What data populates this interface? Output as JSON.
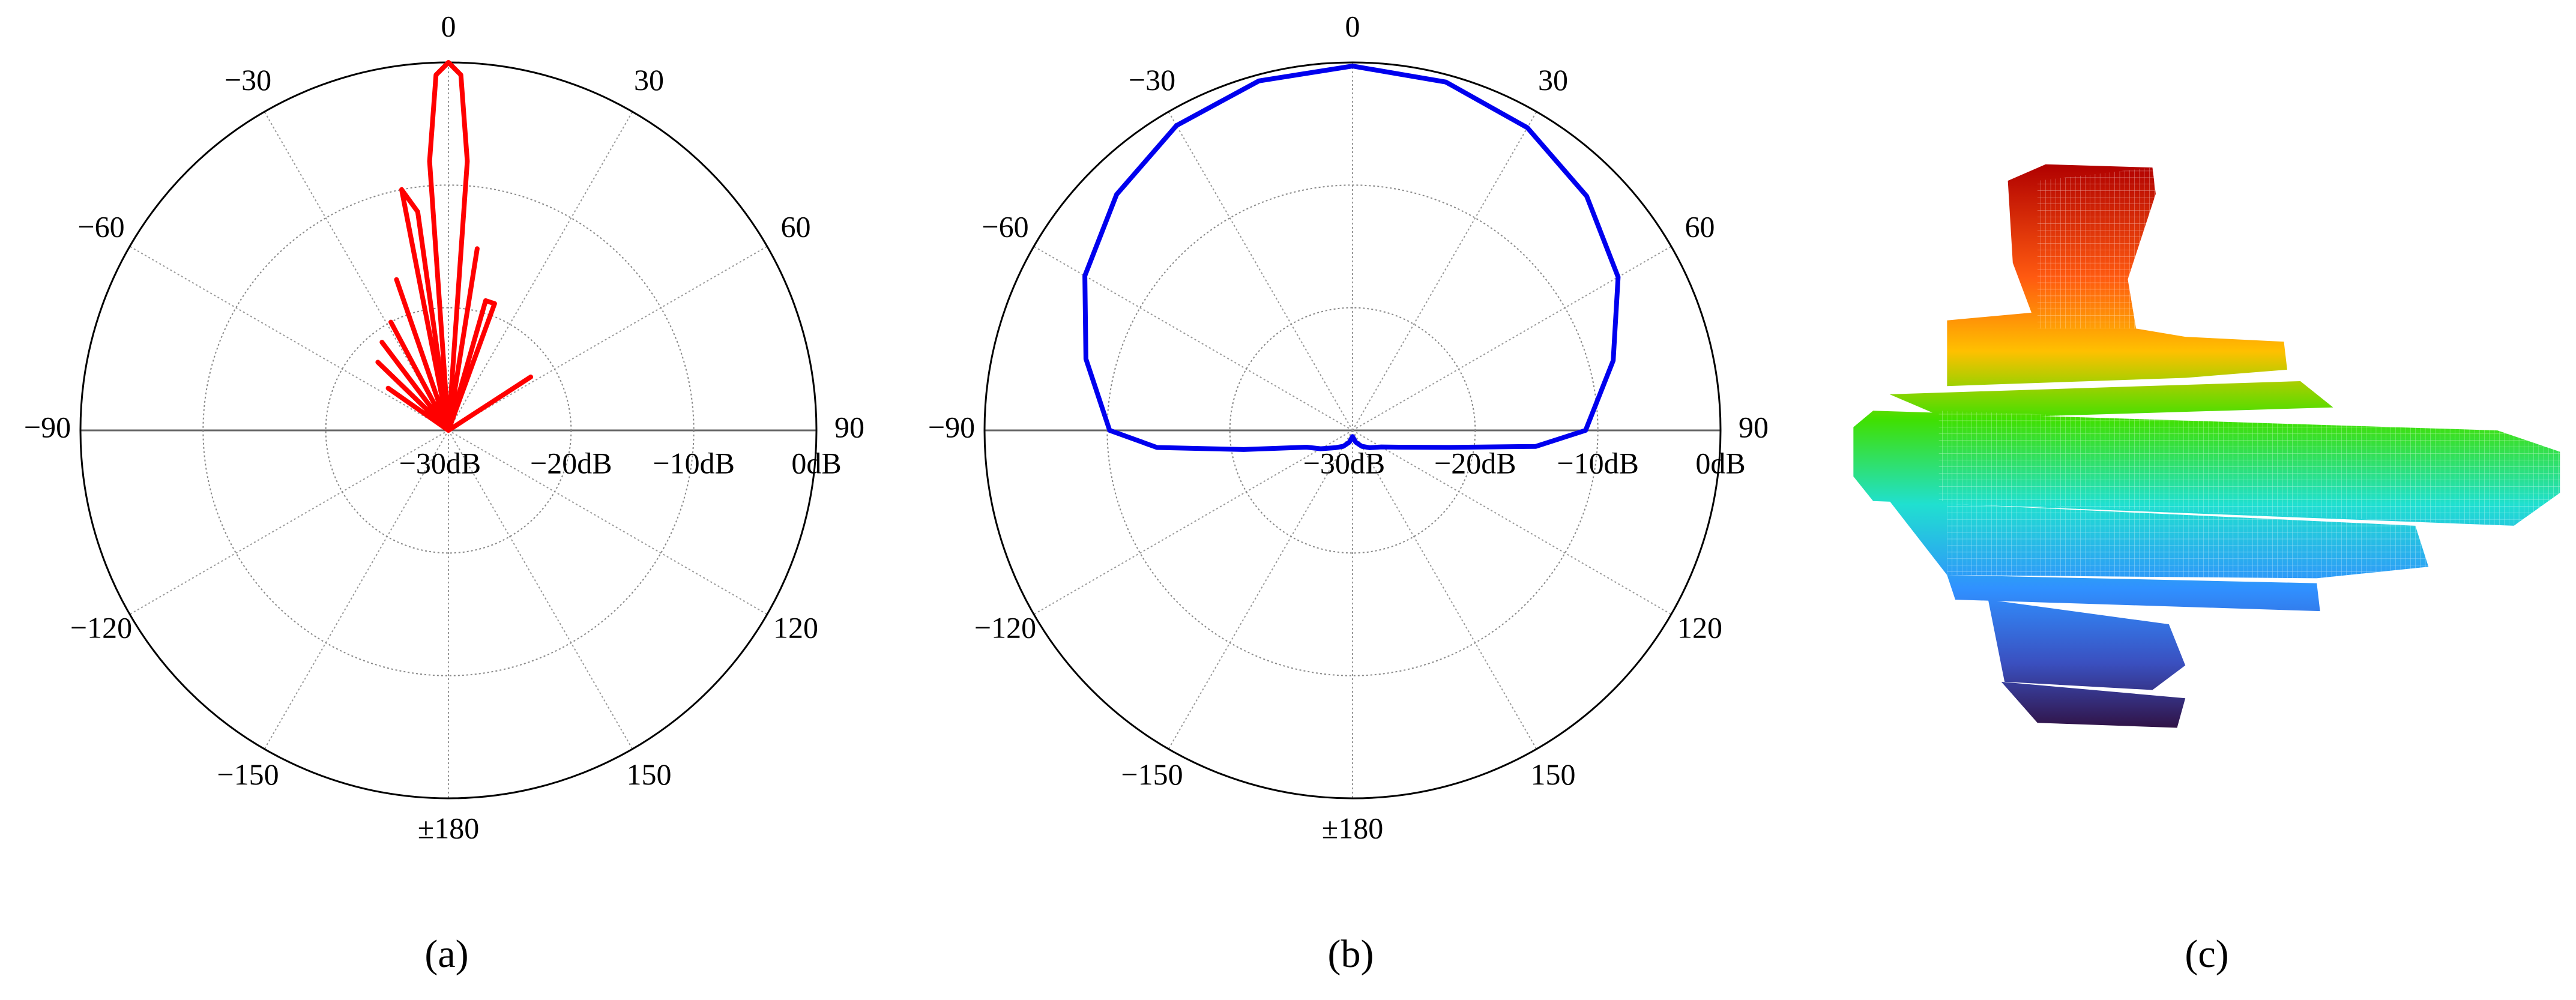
{
  "chart_data": [
    {
      "type": "polar",
      "label": "(a)",
      "color": "#ff0000",
      "theta": [
        -60,
        -55,
        -50,
        -46,
        -42,
        -37,
        -33,
        -28,
        -24,
        -19,
        -15,
        -11,
        -8,
        -6,
        -4,
        -2,
        0,
        2,
        4,
        6,
        9,
        12,
        16,
        20,
        23,
        40,
        57,
        60
      ],
      "r": [
        -30,
        -24,
        -30,
        -22,
        -30,
        -21,
        -30,
        -20,
        -30,
        -17,
        -30,
        -10,
        -12,
        -30,
        -8,
        -1,
        0,
        -1,
        -8,
        -30,
        -15,
        -30,
        -19,
        -19,
        -30,
        -30,
        -22,
        -30
      ],
      "rlim": [
        -30,
        0
      ],
      "rticks": [
        {
          "value": -30,
          "label": "−30dB"
        },
        {
          "value": -20,
          "label": "−20dB"
        },
        {
          "value": -10,
          "label": "−10dB"
        },
        {
          "value": 0,
          "label": "0dB"
        }
      ],
      "thetaticks": [
        0,
        30,
        60,
        90,
        120,
        150,
        {
          "value": 180,
          "label": "±180"
        },
        {
          "value": -150,
          "label": "−150"
        },
        {
          "value": -120,
          "label": "−120"
        },
        {
          "value": -90,
          "label": "−90"
        },
        {
          "value": -60,
          "label": "−60"
        },
        {
          "value": -30,
          "label": "−30"
        }
      ]
    },
    {
      "type": "polar",
      "label": "(b)",
      "color": "#0000ee",
      "theta": [
        -180,
        -165,
        -150,
        -135,
        -120,
        -110,
        -100,
        -95,
        -90,
        -75,
        -60,
        -45,
        -30,
        -15,
        0,
        15,
        30,
        45,
        60,
        75,
        90,
        95,
        100,
        110,
        120,
        135,
        150,
        165,
        180
      ],
      "r": [
        -29.5,
        -29,
        -28.5,
        -28,
        -27,
        -26,
        -21,
        -14,
        -10.2,
        -7.5,
        -4.8,
        -2.8,
        -1.3,
        -0.5,
        -0.3,
        -0.6,
        -1.5,
        -3,
        -5,
        -8,
        -11,
        -15,
        -22,
        -26,
        -27.3,
        -28,
        -28.5,
        -29,
        -29.5
      ],
      "rlim": [
        -30,
        0
      ],
      "rticks": [
        {
          "value": -30,
          "label": "−30dB"
        },
        {
          "value": -20,
          "label": "−20dB"
        },
        {
          "value": -10,
          "label": "−10dB"
        },
        {
          "value": 0,
          "label": "0dB"
        }
      ],
      "thetaticks": [
        0,
        30,
        60,
        90,
        120,
        150,
        {
          "value": 180,
          "label": "±180"
        },
        {
          "value": -150,
          "label": "−150"
        },
        {
          "value": -120,
          "label": "−120"
        },
        {
          "value": -90,
          "label": "−90"
        },
        {
          "value": -60,
          "label": "−60"
        },
        {
          "value": -30,
          "label": "−30"
        }
      ]
    }
  ],
  "image_panel": {
    "label": "(c)"
  }
}
